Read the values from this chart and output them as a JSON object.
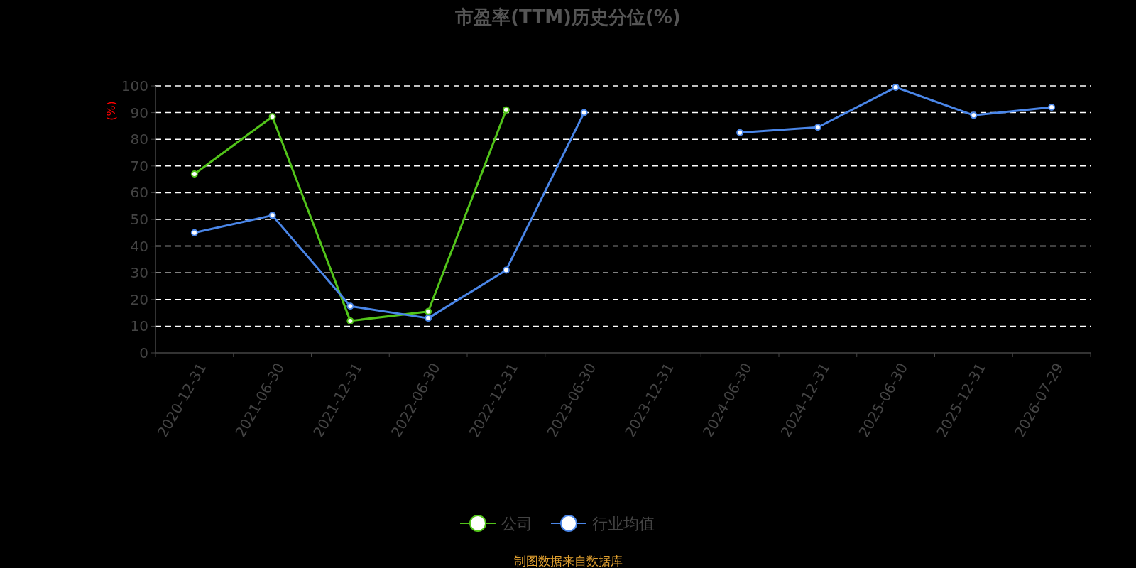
{
  "chart_data": {
    "type": "line",
    "title": "市盈率(TTM)历史分位(%)",
    "ylabel": "(%)",
    "categories": [
      "2020-12-31",
      "2021-06-30",
      "2021-12-31",
      "2022-06-30",
      "2022-12-31",
      "2023-06-30",
      "2023-12-31",
      "2024-06-30",
      "2024-12-31",
      "2025-06-30",
      "2025-12-31",
      "2026-07-29"
    ],
    "series": [
      {
        "name": "公司",
        "color": "#52c41a",
        "values": [
          67,
          88.5,
          12,
          15.5,
          91,
          null,
          null,
          null,
          null,
          null,
          null,
          null
        ]
      },
      {
        "name": "行业均值",
        "color": "#4a86e8",
        "values": [
          45,
          51.5,
          17.5,
          13,
          31,
          90,
          null,
          82.5,
          84.5,
          99.5,
          89,
          92
        ]
      }
    ],
    "ylim": [
      0,
      100
    ],
    "yticks": [
      0,
      10,
      20,
      30,
      40,
      50,
      60,
      70,
      80,
      90,
      100
    ],
    "grid": "y",
    "legend": "bottom",
    "marker": "circle",
    "line_style": "solid",
    "annotations": [
      "制图数据来自数据库"
    ]
  }
}
